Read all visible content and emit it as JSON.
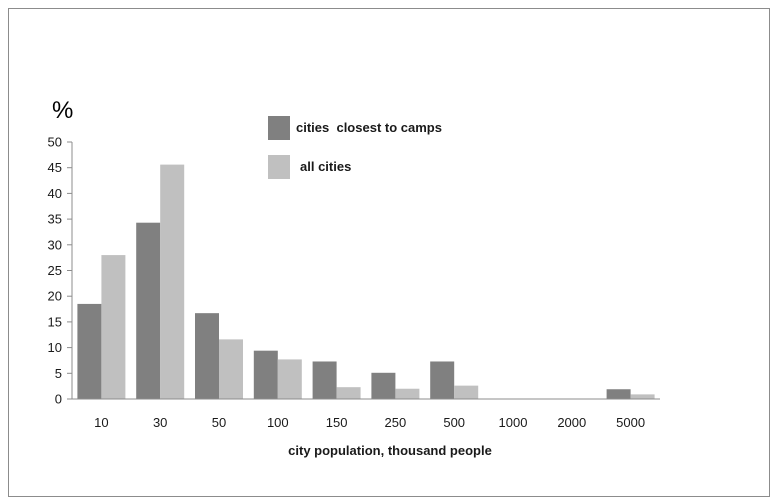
{
  "chart_data": {
    "type": "bar",
    "ylabel": "%",
    "xlabel": "city population, thousand people",
    "ylim": [
      0,
      50
    ],
    "yticks": [
      0,
      5,
      10,
      15,
      20,
      25,
      30,
      35,
      40,
      45,
      50
    ],
    "categories": [
      "10",
      "30",
      "50",
      "100",
      "150",
      "250",
      "500",
      "1000",
      "2000",
      "5000"
    ],
    "grid": false,
    "legend_position": "top-center",
    "series": [
      {
        "name": "cities  closest to camps",
        "color": "#808080",
        "values": [
          18.5,
          34.3,
          16.7,
          9.4,
          7.3,
          5.1,
          7.3,
          0,
          0,
          1.9
        ]
      },
      {
        "name": "all cities",
        "color": "#c0c0c0",
        "values": [
          28,
          45.6,
          11.6,
          7.7,
          2.3,
          2.0,
          2.6,
          0,
          0,
          0.9
        ]
      }
    ]
  }
}
